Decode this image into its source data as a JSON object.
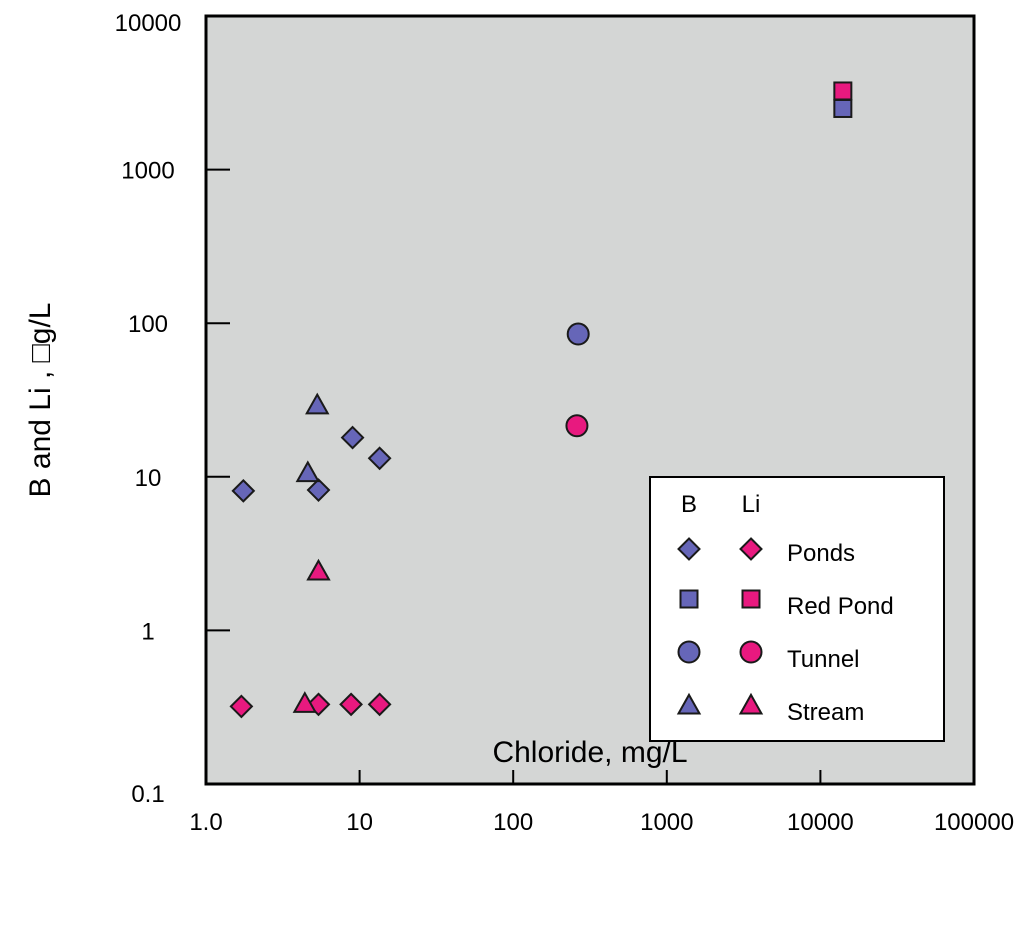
{
  "chart_data": {
    "type": "scatter",
    "xlabel": "Chloride, mg/L",
    "ylabel": "B and Li , □g/L",
    "x_scale": "log",
    "y_scale": "log",
    "xlim": [
      1,
      100000
    ],
    "ylim": [
      0.1,
      10000
    ],
    "x_tick_labels": [
      "1.0",
      "10",
      "100",
      "1000",
      "10000",
      "100000"
    ],
    "x_tick_values": [
      1,
      10,
      100,
      1000,
      10000,
      100000
    ],
    "y_tick_labels": [
      "0.1",
      "1",
      "10",
      "100",
      "1000",
      "10000"
    ],
    "y_tick_values": [
      0.1,
      1,
      10,
      100,
      1000,
      10000
    ],
    "plot_background": "#d4d6d5",
    "grid": false,
    "legend": {
      "placement": "bottom-right",
      "column_headers": [
        "B",
        "Li"
      ],
      "entries": [
        "Ponds",
        "Red Pond",
        "Tunnel",
        "Stream"
      ]
    },
    "colors": {
      "B": "#6666b8",
      "Li": "#e8197f"
    },
    "series": [
      {
        "element": "B",
        "group": "Ponds",
        "marker": "diamond",
        "points": [
          [
            1.75,
            8.1
          ],
          [
            5.4,
            8.2
          ],
          [
            9.0,
            18
          ],
          [
            13.5,
            13.2
          ]
        ]
      },
      {
        "element": "Li",
        "group": "Ponds",
        "marker": "diamond",
        "points": [
          [
            1.7,
            0.32
          ],
          [
            5.4,
            0.33
          ],
          [
            8.8,
            0.33
          ],
          [
            13.5,
            0.33
          ]
        ]
      },
      {
        "element": "B",
        "group": "Red Pond",
        "marker": "square",
        "points": [
          [
            14000,
            2500
          ]
        ]
      },
      {
        "element": "Li",
        "group": "Red Pond",
        "marker": "square",
        "points": [
          [
            14000,
            3250
          ]
        ]
      },
      {
        "element": "B",
        "group": "Tunnel",
        "marker": "circle",
        "points": [
          [
            265,
            85
          ]
        ]
      },
      {
        "element": "Li",
        "group": "Tunnel",
        "marker": "circle",
        "points": [
          [
            260,
            21.5
          ]
        ]
      },
      {
        "element": "B",
        "group": "Stream",
        "marker": "triangle",
        "points": [
          [
            4.6,
            10.5
          ],
          [
            5.3,
            29
          ]
        ]
      },
      {
        "element": "Li",
        "group": "Stream",
        "marker": "triangle",
        "points": [
          [
            4.4,
            0.33
          ],
          [
            5.4,
            2.4
          ]
        ]
      }
    ]
  }
}
